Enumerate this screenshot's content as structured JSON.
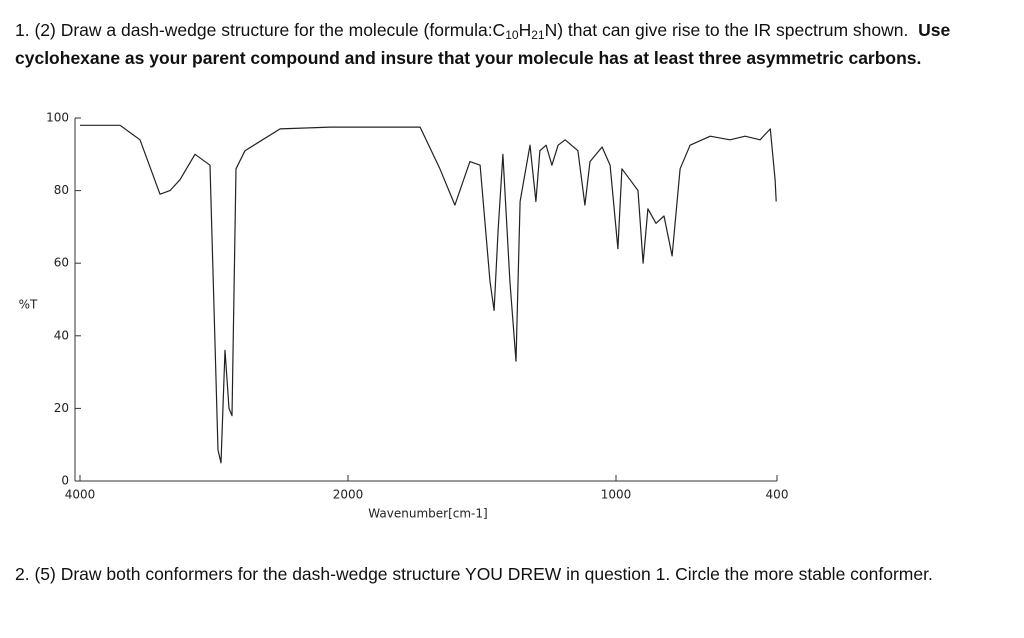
{
  "question_1": {
    "lead": "1. (2) Draw a dash-wedge structure for the molecule (formula:C",
    "c_count": "10",
    "h": "H",
    "h_count": "21",
    "tail": "N) that can give rise to the IR spectrum shown.",
    "instruction": "Use cyclohexane as your parent compound and insure that your molecule has at least three asymmetric carbons."
  },
  "chart_data": {
    "type": "line",
    "xlabel": "Wavenumber[cm-1]",
    "ylabel": "%T",
    "xlim": [
      4000,
      400
    ],
    "xticks": [
      4000,
      2000,
      1000,
      400
    ],
    "ylim": [
      0,
      100
    ],
    "yticks": [
      0,
      20,
      40,
      60,
      80,
      100
    ],
    "color": "#222222",
    "x": [
      4000,
      3701,
      3552,
      3403,
      3328,
      3254,
      3142,
      3030,
      2970,
      2948,
      2918,
      2888,
      2866,
      2836,
      2769,
      2507,
      2134,
      1731,
      1657,
      1601,
      1545,
      1507,
      1470,
      1455,
      1440,
      1422,
      1396,
      1373,
      1358,
      1321,
      1299,
      1284,
      1261,
      1239,
      1216,
      1190,
      1142,
      1116,
      1097,
      1052,
      1022,
      993,
      978,
      948,
      918,
      899,
      881,
      851,
      821,
      791,
      761,
      724,
      649,
      575,
      519,
      463,
      425,
      407,
      403
    ],
    "values": [
      98,
      98,
      94,
      79,
      80,
      83,
      90,
      87,
      8.5,
      5,
      36,
      20,
      18,
      86,
      91,
      97,
      97.5,
      97.5,
      86,
      76,
      88,
      87,
      55,
      47,
      69,
      90,
      55,
      33,
      77,
      92.5,
      77,
      91,
      92.5,
      87,
      92.5,
      94,
      91,
      76,
      88,
      92,
      87,
      64,
      86,
      83,
      80,
      60,
      75,
      71,
      73,
      62,
      86,
      92.5,
      95,
      94,
      95,
      94,
      97,
      83,
      77
    ]
  },
  "question_2": {
    "text": "2. (5) Draw both conformers for the dash-wedge structure YOU DREW in question 1.  Circle the more stable conformer."
  }
}
